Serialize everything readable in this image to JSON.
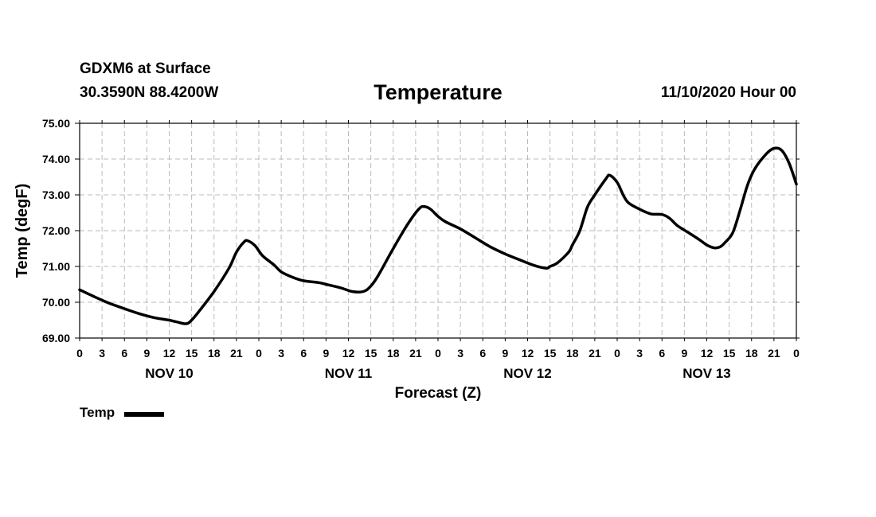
{
  "header": {
    "station": "GDXM6 at Surface",
    "coords": "30.3590N 88.4200W",
    "title": "Temperature",
    "datetime": "11/10/2020 Hour 00"
  },
  "chart_data": {
    "type": "line",
    "title": "Temperature",
    "xlabel": "Forecast (Z)",
    "ylabel": "Temp (degF)",
    "ylim": [
      69.0,
      75.0
    ],
    "yticks": [
      "69.00",
      "70.00",
      "71.00",
      "72.00",
      "73.00",
      "74.00",
      "75.00"
    ],
    "xlim": [
      0,
      96
    ],
    "xticks": [
      {
        "h": 0,
        "label": "0"
      },
      {
        "h": 3,
        "label": "3"
      },
      {
        "h": 6,
        "label": "6"
      },
      {
        "h": 9,
        "label": "9"
      },
      {
        "h": 12,
        "label": "12"
      },
      {
        "h": 15,
        "label": "15"
      },
      {
        "h": 18,
        "label": "18"
      },
      {
        "h": 21,
        "label": "21"
      },
      {
        "h": 24,
        "label": "0"
      },
      {
        "h": 27,
        "label": "3"
      },
      {
        "h": 30,
        "label": "6"
      },
      {
        "h": 33,
        "label": "9"
      },
      {
        "h": 36,
        "label": "12"
      },
      {
        "h": 39,
        "label": "15"
      },
      {
        "h": 42,
        "label": "18"
      },
      {
        "h": 45,
        "label": "21"
      },
      {
        "h": 48,
        "label": "0"
      },
      {
        "h": 51,
        "label": "3"
      },
      {
        "h": 54,
        "label": "6"
      },
      {
        "h": 57,
        "label": "9"
      },
      {
        "h": 60,
        "label": "12"
      },
      {
        "h": 63,
        "label": "15"
      },
      {
        "h": 66,
        "label": "18"
      },
      {
        "h": 69,
        "label": "21"
      },
      {
        "h": 72,
        "label": "0"
      },
      {
        "h": 75,
        "label": "3"
      },
      {
        "h": 78,
        "label": "6"
      },
      {
        "h": 81,
        "label": "9"
      },
      {
        "h": 84,
        "label": "12"
      },
      {
        "h": 87,
        "label": "15"
      },
      {
        "h": 90,
        "label": "18"
      },
      {
        "h": 93,
        "label": "21"
      },
      {
        "h": 96,
        "label": "0"
      }
    ],
    "days": [
      {
        "h": 12,
        "label": "NOV 10"
      },
      {
        "h": 36,
        "label": "NOV 11"
      },
      {
        "h": 60,
        "label": "NOV 12"
      },
      {
        "h": 84,
        "label": "NOV 13"
      }
    ],
    "grid": true,
    "series": [
      {
        "name": "Temp",
        "color": "#000000",
        "points": [
          [
            0,
            70.35
          ],
          [
            2,
            70.15
          ],
          [
            4,
            69.97
          ],
          [
            6,
            69.82
          ],
          [
            8,
            69.68
          ],
          [
            10,
            69.57
          ],
          [
            12,
            69.5
          ],
          [
            13,
            69.45
          ],
          [
            14.3,
            69.4
          ],
          [
            15,
            69.5
          ],
          [
            16,
            69.75
          ],
          [
            18,
            70.3
          ],
          [
            20,
            70.95
          ],
          [
            21,
            71.4
          ],
          [
            22,
            71.68
          ],
          [
            22.5,
            71.72
          ],
          [
            23.5,
            71.58
          ],
          [
            24.5,
            71.3
          ],
          [
            26,
            71.05
          ],
          [
            27,
            70.85
          ],
          [
            28.5,
            70.7
          ],
          [
            30,
            70.6
          ],
          [
            32,
            70.55
          ],
          [
            33,
            70.5
          ],
          [
            35,
            70.4
          ],
          [
            36.5,
            70.3
          ],
          [
            38,
            70.3
          ],
          [
            39,
            70.45
          ],
          [
            40,
            70.75
          ],
          [
            42,
            71.5
          ],
          [
            44,
            72.2
          ],
          [
            45.5,
            72.62
          ],
          [
            46.2,
            72.67
          ],
          [
            47,
            72.6
          ],
          [
            48,
            72.4
          ],
          [
            49,
            72.25
          ],
          [
            51,
            72.05
          ],
          [
            53,
            71.8
          ],
          [
            55,
            71.55
          ],
          [
            57,
            71.35
          ],
          [
            59,
            71.18
          ],
          [
            61,
            71.02
          ],
          [
            62.5,
            70.95
          ],
          [
            63,
            71.0
          ],
          [
            64,
            71.1
          ],
          [
            65.5,
            71.4
          ],
          [
            66,
            71.6
          ],
          [
            67,
            72.0
          ],
          [
            68,
            72.65
          ],
          [
            69,
            73.0
          ],
          [
            70.5,
            73.45
          ],
          [
            71,
            73.55
          ],
          [
            72,
            73.35
          ],
          [
            72.8,
            73.0
          ],
          [
            73.5,
            72.78
          ],
          [
            75,
            72.6
          ],
          [
            76.5,
            72.47
          ],
          [
            78,
            72.45
          ],
          [
            79,
            72.35
          ],
          [
            80,
            72.15
          ],
          [
            81.5,
            71.95
          ],
          [
            83,
            71.75
          ],
          [
            84,
            71.6
          ],
          [
            85,
            71.52
          ],
          [
            85.8,
            71.55
          ],
          [
            86.5,
            71.68
          ],
          [
            87.5,
            71.95
          ],
          [
            88.5,
            72.6
          ],
          [
            89.5,
            73.3
          ],
          [
            90.5,
            73.75
          ],
          [
            92,
            74.15
          ],
          [
            93,
            74.3
          ],
          [
            94,
            74.25
          ],
          [
            95,
            73.9
          ],
          [
            96,
            73.3
          ]
        ]
      }
    ],
    "legend": {
      "label": "Temp",
      "position": "bottom-left"
    }
  }
}
